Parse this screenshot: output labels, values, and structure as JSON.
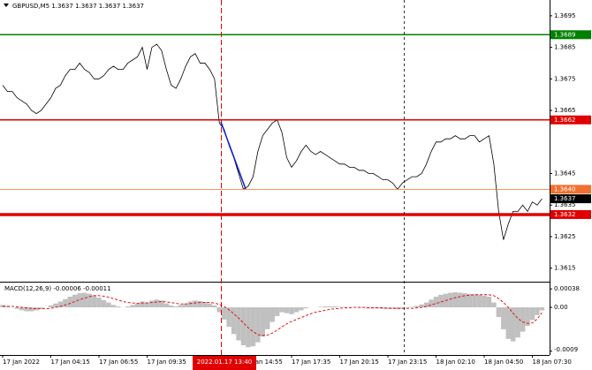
{
  "chart_data": [
    {
      "type": "line",
      "title": "GBPUSD,M5  1.3637 1.3637 1.3637 1.3637",
      "cursor_label": "2022.01.17 13:40",
      "color": "#000000",
      "categories": [
        "17 Jan 2022",
        null,
        null,
        null,
        null,
        null,
        null,
        null,
        null,
        null,
        "17 Jan 04:15",
        null,
        null,
        null,
        null,
        null,
        null,
        null,
        null,
        null,
        "17 Jan 06:55",
        null,
        null,
        null,
        null,
        null,
        null,
        null,
        null,
        null,
        "17 Jan 09:35",
        null,
        null,
        null,
        null,
        null,
        null,
        null,
        null,
        null,
        null,
        null,
        null,
        null,
        null,
        null,
        null,
        null,
        null,
        null,
        "17 Jan 14:55",
        null,
        null,
        null,
        null,
        null,
        null,
        null,
        null,
        null,
        "17 Jan 17:35",
        null,
        null,
        null,
        null,
        null,
        null,
        null,
        null,
        null,
        "17 Jan 20:15",
        null,
        null,
        null,
        null,
        null,
        null,
        null,
        null,
        null,
        "17 Jan 23:15",
        null,
        null,
        null,
        null,
        null,
        null,
        null,
        null,
        null,
        "18 Jan 02:10",
        null,
        null,
        null,
        null,
        null,
        null,
        null,
        null,
        null,
        "18 Jan 04:50",
        null,
        null,
        null,
        null,
        null,
        null,
        null,
        null,
        null,
        "18 Jan 07:30",
        null,
        null
      ],
      "values": [
        1.3673,
        1.3671,
        1.3671,
        1.3669,
        1.3668,
        1.3667,
        1.3665,
        1.3664,
        1.3665,
        1.3667,
        1.3669,
        1.3672,
        1.3673,
        1.3676,
        1.3678,
        1.3678,
        1.368,
        1.3678,
        1.3677,
        1.3675,
        1.3675,
        1.3676,
        1.3678,
        1.3679,
        1.3678,
        1.3678,
        1.368,
        1.3681,
        1.3682,
        1.3685,
        1.3678,
        1.3685,
        1.3686,
        1.3684,
        1.3678,
        1.3673,
        1.3672,
        1.3675,
        1.3679,
        1.3682,
        1.3683,
        1.368,
        1.368,
        1.3678,
        1.3675,
        1.3661,
        1.3659,
        1.3654,
        1.365,
        1.3645,
        1.364,
        1.3641,
        1.3644,
        1.3652,
        1.3657,
        1.3659,
        1.3661,
        1.3662,
        1.3658,
        1.365,
        1.3647,
        1.3649,
        1.3652,
        1.3654,
        1.3652,
        1.3651,
        1.3652,
        1.3651,
        1.365,
        1.3649,
        1.3648,
        1.3648,
        1.3647,
        1.3647,
        1.3646,
        1.3646,
        1.3645,
        1.3645,
        1.3644,
        1.3643,
        1.3643,
        1.3642,
        1.364,
        1.3642,
        1.3643,
        1.3644,
        1.3644,
        1.3645,
        1.3648,
        1.3652,
        1.3655,
        1.3655,
        1.3656,
        1.3656,
        1.3657,
        1.3656,
        1.3656,
        1.3657,
        1.3657,
        1.3655,
        1.3656,
        1.3657,
        1.3648,
        1.3633,
        1.3624,
        1.3629,
        1.3633,
        1.3633,
        1.3635,
        1.3633,
        1.3636,
        1.3635,
        1.3637
      ],
      "ylim": [
        1.3611,
        1.37
      ],
      "yticks": [
        1.3695,
        1.3685,
        1.3675,
        1.3665,
        1.3645,
        1.3635,
        1.3625,
        1.3615
      ],
      "levels": [
        {
          "value": 1.3689,
          "color": "#008000",
          "weight": "normal"
        },
        {
          "value": 1.3662,
          "color": "#e00000",
          "weight": "normal"
        },
        {
          "value": 1.364,
          "label": "1.3640",
          "color": "#f07030",
          "weight": "thin"
        },
        {
          "value": 1.3637,
          "color": "#000000",
          "weight": "none"
        },
        {
          "value": 1.3632,
          "color": "#e00000",
          "weight": "thick"
        }
      ]
    },
    {
      "type": "macd",
      "title": "MACD(12,26,9) -0.00006 -0.00011",
      "ylim": [
        -0.00098,
        0.00051
      ],
      "yticks": [
        0.00038,
        {
          "value": 0,
          "label": "0.00"
        },
        -0.0009
      ],
      "series": [
        {
          "style": "histogram",
          "color": "#c0c0c0",
          "values": [
            5e-05,
            3e-05,
            0,
            -3e-05,
            -6e-05,
            -8e-05,
            -8e-05,
            -6e-05,
            -3e-05,
            0,
            4e-05,
            8e-05,
            0.00012,
            0.00017,
            0.00022,
            0.00026,
            0.00029,
            0.0003,
            0.00028,
            0.00025,
            0.0002,
            0.00015,
            0.0001,
            5e-05,
            2e-05,
            0,
            2e-05,
            5e-05,
            8e-05,
            0.00012,
            0.0001,
            0.00014,
            0.00016,
            0.00014,
            8e-05,
            4e-05,
            2e-05,
            5e-05,
            8e-05,
            0.00012,
            0.00014,
            0.00013,
            0.00011,
            8e-05,
            4e-05,
            -0.0001,
            -0.00025,
            -0.0004,
            -0.00055,
            -0.00068,
            -0.00078,
            -0.00082,
            -0.0008,
            -0.00072,
            -0.0006,
            -0.00045,
            -0.0003,
            -0.00018,
            -0.0001,
            -0.00012,
            -0.00014,
            -0.0001,
            -6e-05,
            -2e-05,
            0,
            0,
            1e-05,
            2e-05,
            2e-05,
            2e-05,
            1e-05,
            1e-05,
            0,
            0,
            -1e-05,
            -1e-05,
            -2e-05,
            -2e-05,
            -2e-05,
            -3e-05,
            -3e-05,
            -3e-05,
            -4e-05,
            -3e-05,
            -1e-05,
            1e-05,
            3e-05,
            6e-05,
            0.0001,
            0.00016,
            0.00022,
            0.00026,
            0.00028,
            0.0003,
            0.00031,
            0.0003,
            0.00029,
            0.00028,
            0.00027,
            0.00026,
            0.00024,
            0.00022,
            0.0001,
            -0.0002,
            -0.00045,
            -0.00065,
            -0.0007,
            -0.00062,
            -0.0005,
            -0.00038,
            -0.00026,
            -0.00016,
            -6e-05
          ]
        },
        {
          "style": "dashed",
          "color": "#e00000",
          "values": [
            2e-05,
            2e-05,
            2e-05,
            1e-05,
            0,
            -1e-05,
            -2e-05,
            -3e-05,
            -3e-05,
            -3e-05,
            -2e-05,
            0,
            2e-05,
            5e-05,
            8e-05,
            0.00012,
            0.00016,
            0.00019,
            0.00022,
            0.00024,
            0.00024,
            0.00023,
            0.00021,
            0.00018,
            0.00015,
            0.00012,
            0.0001,
            9e-05,
            8e-05,
            9e-05,
            9e-05,
            0.0001,
            0.00011,
            0.00012,
            0.00011,
            0.0001,
            8e-05,
            7e-05,
            7e-05,
            8e-05,
            9e-05,
            0.0001,
            0.0001,
            0.0001,
            9e-05,
            6e-05,
            2e-05,
            -5e-05,
            -0.00013,
            -0.00022,
            -0.00032,
            -0.00042,
            -0.0005,
            -0.00056,
            -0.00058,
            -0.00057,
            -0.00053,
            -0.00047,
            -0.0004,
            -0.00034,
            -0.00029,
            -0.00025,
            -0.00021,
            -0.00017,
            -0.00013,
            -0.0001,
            -8e-05,
            -6e-05,
            -4e-05,
            -3e-05,
            -2e-05,
            -1e-05,
            -1e-05,
            0,
            0,
            0,
            -1e-05,
            -1e-05,
            -1e-05,
            -1e-05,
            -2e-05,
            -2e-05,
            -2e-05,
            -2e-05,
            -2e-05,
            -2e-05,
            -1e-05,
            0,
            2e-05,
            5e-05,
            8e-05,
            0.00011,
            0.00014,
            0.00017,
            0.0002,
            0.00022,
            0.00024,
            0.00025,
            0.00026,
            0.00026,
            0.00026,
            0.00026,
            0.00024,
            0.00018,
            0.0001,
            0,
            -0.00012,
            -0.00023,
            -0.0003,
            -0.00033,
            -0.00032,
            -0.00024,
            -0.00011
          ]
        }
      ]
    }
  ]
}
